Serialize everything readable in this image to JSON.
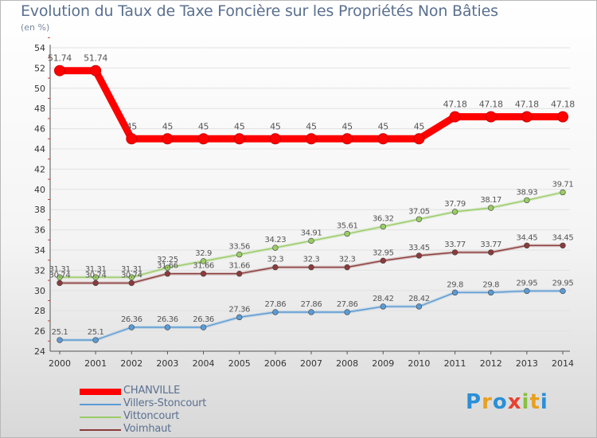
{
  "title": "Evolution du Taux de Taxe Foncière sur les Propriétés Non Bâties",
  "subtitle": "(en %)",
  "chart_data": {
    "type": "line",
    "title": "Evolution du Taux de Taxe Foncière sur les Propriétés Non Bâties",
    "subtitle": "(en %)",
    "xlabel": "",
    "ylabel": "(en %)",
    "x": [
      "2000",
      "2001",
      "2002",
      "2003",
      "2004",
      "2005",
      "2006",
      "2007",
      "2008",
      "2009",
      "2010",
      "2011",
      "2012",
      "2013",
      "2014"
    ],
    "ylim": [
      24,
      54
    ],
    "yticks": [
      "24",
      "26",
      "28",
      "30",
      "32",
      "34",
      "36",
      "38",
      "40",
      "42",
      "44",
      "46",
      "48",
      "50",
      "52",
      "54"
    ],
    "grid": "horizontal",
    "legend_position": "bottom-left",
    "series": [
      {
        "name": "CHANVILLE",
        "color": "#ff0000",
        "values": [
          51.74,
          51.74,
          45,
          45,
          45,
          45,
          45,
          45,
          45,
          45,
          45,
          47.18,
          47.18,
          47.18,
          47.18
        ],
        "labels": [
          "51.74",
          "51.74",
          "45",
          "45",
          "45",
          "45",
          "45",
          "45",
          "45",
          "45",
          "45",
          "47.18",
          "47.18",
          "47.18",
          "47.18"
        ]
      },
      {
        "name": "Villers-Stoncourt",
        "color": "#5b9bd5",
        "values": [
          25.1,
          25.1,
          26.36,
          26.36,
          26.36,
          27.36,
          27.86,
          27.86,
          27.86,
          28.42,
          28.42,
          29.8,
          29.8,
          29.95,
          29.95
        ],
        "labels": [
          "25.1",
          "25.1",
          "26.36",
          "26.36",
          "26.36",
          "27.36",
          "27.86",
          "27.86",
          "27.86",
          "28.42",
          "28.42",
          "29.8",
          "29.8",
          "29.95",
          "29.95"
        ]
      },
      {
        "name": "Vittoncourt",
        "color": "#99cc66",
        "values": [
          31.31,
          31.31,
          31.31,
          32.25,
          32.9,
          33.56,
          34.23,
          34.91,
          35.61,
          36.32,
          37.05,
          37.79,
          38.17,
          38.93,
          39.71
        ],
        "labels": [
          "31.31",
          "31.31",
          "31.31",
          "32.25",
          "32.9",
          "33.56",
          "34.23",
          "34.91",
          "35.61",
          "36.32",
          "37.05",
          "37.79",
          "38.17",
          "38.93",
          "39.71"
        ]
      },
      {
        "name": "Voimhaut",
        "color": "#8b3a3a",
        "values": [
          30.74,
          30.74,
          30.74,
          31.66,
          31.66,
          31.66,
          32.3,
          32.3,
          32.3,
          32.95,
          33.45,
          33.77,
          33.77,
          34.45,
          34.45
        ],
        "labels": [
          "30.74",
          "30.74",
          "30.74",
          "31.66",
          "31.66",
          "31.66",
          "32.3",
          "32.3",
          "32.3",
          "32.95",
          "33.45",
          "33.77",
          "33.77",
          "34.45",
          "34.45"
        ]
      }
    ]
  },
  "logo": {
    "letters": [
      {
        "ch": "P",
        "color": "#2a8fd8"
      },
      {
        "ch": "r",
        "color": "#e8a020"
      },
      {
        "ch": "o",
        "color": "#2a8fd8"
      },
      {
        "ch": "x",
        "color": "#e84030"
      },
      {
        "ch": "i",
        "color": "#88c040"
      },
      {
        "ch": "t",
        "color": "#e8a020"
      },
      {
        "ch": "i",
        "color": "#2a8fd8"
      }
    ]
  }
}
